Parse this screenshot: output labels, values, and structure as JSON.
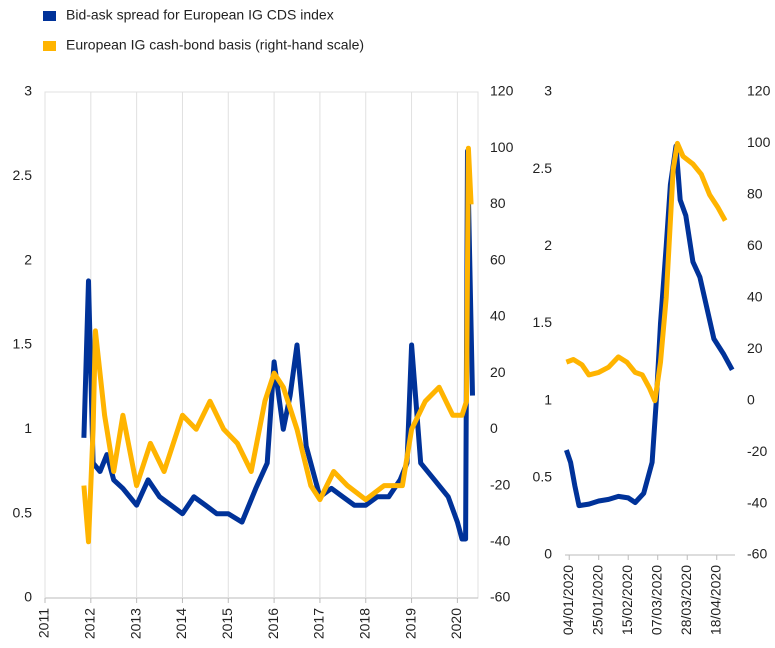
{
  "chart_data": [
    {
      "type": "line",
      "xlim": [
        2011,
        2020.45
      ],
      "xticks": [
        2011,
        2012,
        2013,
        2014,
        2015,
        2016,
        2017,
        2018,
        2019,
        2020
      ],
      "ylim": [
        0,
        3
      ],
      "yticks": [
        0,
        0.5,
        1,
        1.5,
        2,
        2.5,
        3
      ],
      "y2lim": [
        -60,
        120
      ],
      "y2ticks": [
        -60,
        -40,
        -20,
        0,
        20,
        40,
        60,
        80,
        100,
        120
      ],
      "grid": "x",
      "series": [
        {
          "name": "Bid-ask spread for European IG CDS index",
          "color": "#003299",
          "x": [
            2011.85,
            2011.95,
            2012.05,
            2012.2,
            2012.35,
            2012.5,
            2012.7,
            2013.0,
            2013.25,
            2013.5,
            2013.75,
            2014.0,
            2014.25,
            2014.5,
            2014.75,
            2015.0,
            2015.3,
            2015.6,
            2015.85,
            2016.0,
            2016.2,
            2016.35,
            2016.5,
            2016.7,
            2017.0,
            2017.25,
            2017.5,
            2017.75,
            2018.0,
            2018.25,
            2018.5,
            2018.75,
            2018.9,
            2019.0,
            2019.2,
            2019.5,
            2019.8,
            2020.0,
            2020.1,
            2020.18,
            2020.22,
            2020.3,
            2020.33
          ],
          "values": [
            0.95,
            1.88,
            0.8,
            0.75,
            0.85,
            0.7,
            0.65,
            0.55,
            0.7,
            0.6,
            0.55,
            0.5,
            0.6,
            0.55,
            0.5,
            0.5,
            0.45,
            0.65,
            0.8,
            1.4,
            1.0,
            1.2,
            1.5,
            0.9,
            0.6,
            0.65,
            0.6,
            0.55,
            0.55,
            0.6,
            0.6,
            0.7,
            0.8,
            1.5,
            0.8,
            0.7,
            0.6,
            0.45,
            0.35,
            0.35,
            2.65,
            1.6,
            1.2
          ]
        },
        {
          "name": "European IG cash-bond basis (right-hand scale)",
          "color": "#ffb400",
          "axis": "y2",
          "x": [
            2011.85,
            2011.95,
            2012.05,
            2012.1,
            2012.3,
            2012.5,
            2012.7,
            2013.0,
            2013.3,
            2013.6,
            2014.0,
            2014.3,
            2014.6,
            2014.9,
            2015.2,
            2015.5,
            2015.8,
            2016.0,
            2016.2,
            2016.5,
            2016.8,
            2017.0,
            2017.3,
            2017.6,
            2018.0,
            2018.4,
            2018.8,
            2019.0,
            2019.3,
            2019.6,
            2019.9,
            2020.1,
            2020.2,
            2020.24,
            2020.3
          ],
          "values": [
            -20,
            -40,
            0,
            35,
            5,
            -15,
            5,
            -20,
            -5,
            -15,
            5,
            0,
            10,
            0,
            -5,
            -15,
            10,
            20,
            15,
            0,
            -20,
            -25,
            -15,
            -20,
            -25,
            -20,
            -20,
            0,
            10,
            15,
            5,
            5,
            10,
            100,
            80
          ]
        }
      ]
    },
    {
      "type": "line",
      "xlim": [
        "2020-01-01",
        "2020-05-01"
      ],
      "xticks": [
        {
          "value": "2020-01-04",
          "label": "04/01/2020"
        },
        {
          "value": "2020-01-25",
          "label": "25/01/2020"
        },
        {
          "value": "2020-02-15",
          "label": "15/02/2020"
        },
        {
          "value": "2020-03-07",
          "label": "07/03/2020"
        },
        {
          "value": "2020-03-28",
          "label": "28/03/2020"
        },
        {
          "value": "2020-04-18",
          "label": "18/04/2020"
        }
      ],
      "ylim": [
        0,
        3
      ],
      "yticks": [
        0,
        0.5,
        1,
        1.5,
        2,
        2.5,
        3
      ],
      "y2lim": [
        -60,
        120
      ],
      "y2ticks": [
        -60,
        -40,
        -20,
        0,
        20,
        40,
        60,
        80,
        100,
        120
      ],
      "grid": false,
      "series": [
        {
          "color": "#003299",
          "x": [
            "2020-01-02",
            "2020-01-05",
            "2020-01-08",
            "2020-01-11",
            "2020-01-18",
            "2020-01-25",
            "2020-02-01",
            "2020-02-08",
            "2020-02-15",
            "2020-02-20",
            "2020-02-26",
            "2020-03-03",
            "2020-03-06",
            "2020-03-09",
            "2020-03-13",
            "2020-03-16",
            "2020-03-20",
            "2020-03-23",
            "2020-03-27",
            "2020-04-01",
            "2020-04-06",
            "2020-04-11",
            "2020-04-16",
            "2020-04-23",
            "2020-04-29"
          ],
          "values": [
            0.68,
            0.6,
            0.45,
            0.32,
            0.33,
            0.35,
            0.36,
            0.38,
            0.37,
            0.34,
            0.4,
            0.6,
            1.0,
            1.5,
            2.0,
            2.4,
            2.65,
            2.3,
            2.2,
            1.9,
            1.8,
            1.6,
            1.4,
            1.3,
            1.2
          ]
        },
        {
          "color": "#ffb400",
          "axis": "y2",
          "x": [
            "2020-01-02",
            "2020-01-07",
            "2020-01-13",
            "2020-01-18",
            "2020-01-25",
            "2020-02-01",
            "2020-02-08",
            "2020-02-14",
            "2020-02-20",
            "2020-02-25",
            "2020-03-01",
            "2020-03-05",
            "2020-03-09",
            "2020-03-13",
            "2020-03-18",
            "2020-03-21",
            "2020-03-25",
            "2020-04-01",
            "2020-04-07",
            "2020-04-13",
            "2020-04-19",
            "2020-04-24"
          ],
          "values": [
            15,
            16,
            14,
            10,
            11,
            13,
            17,
            15,
            11,
            10,
            5,
            0,
            15,
            40,
            90,
            100,
            95,
            92,
            88,
            80,
            75,
            70
          ]
        }
      ]
    }
  ]
}
